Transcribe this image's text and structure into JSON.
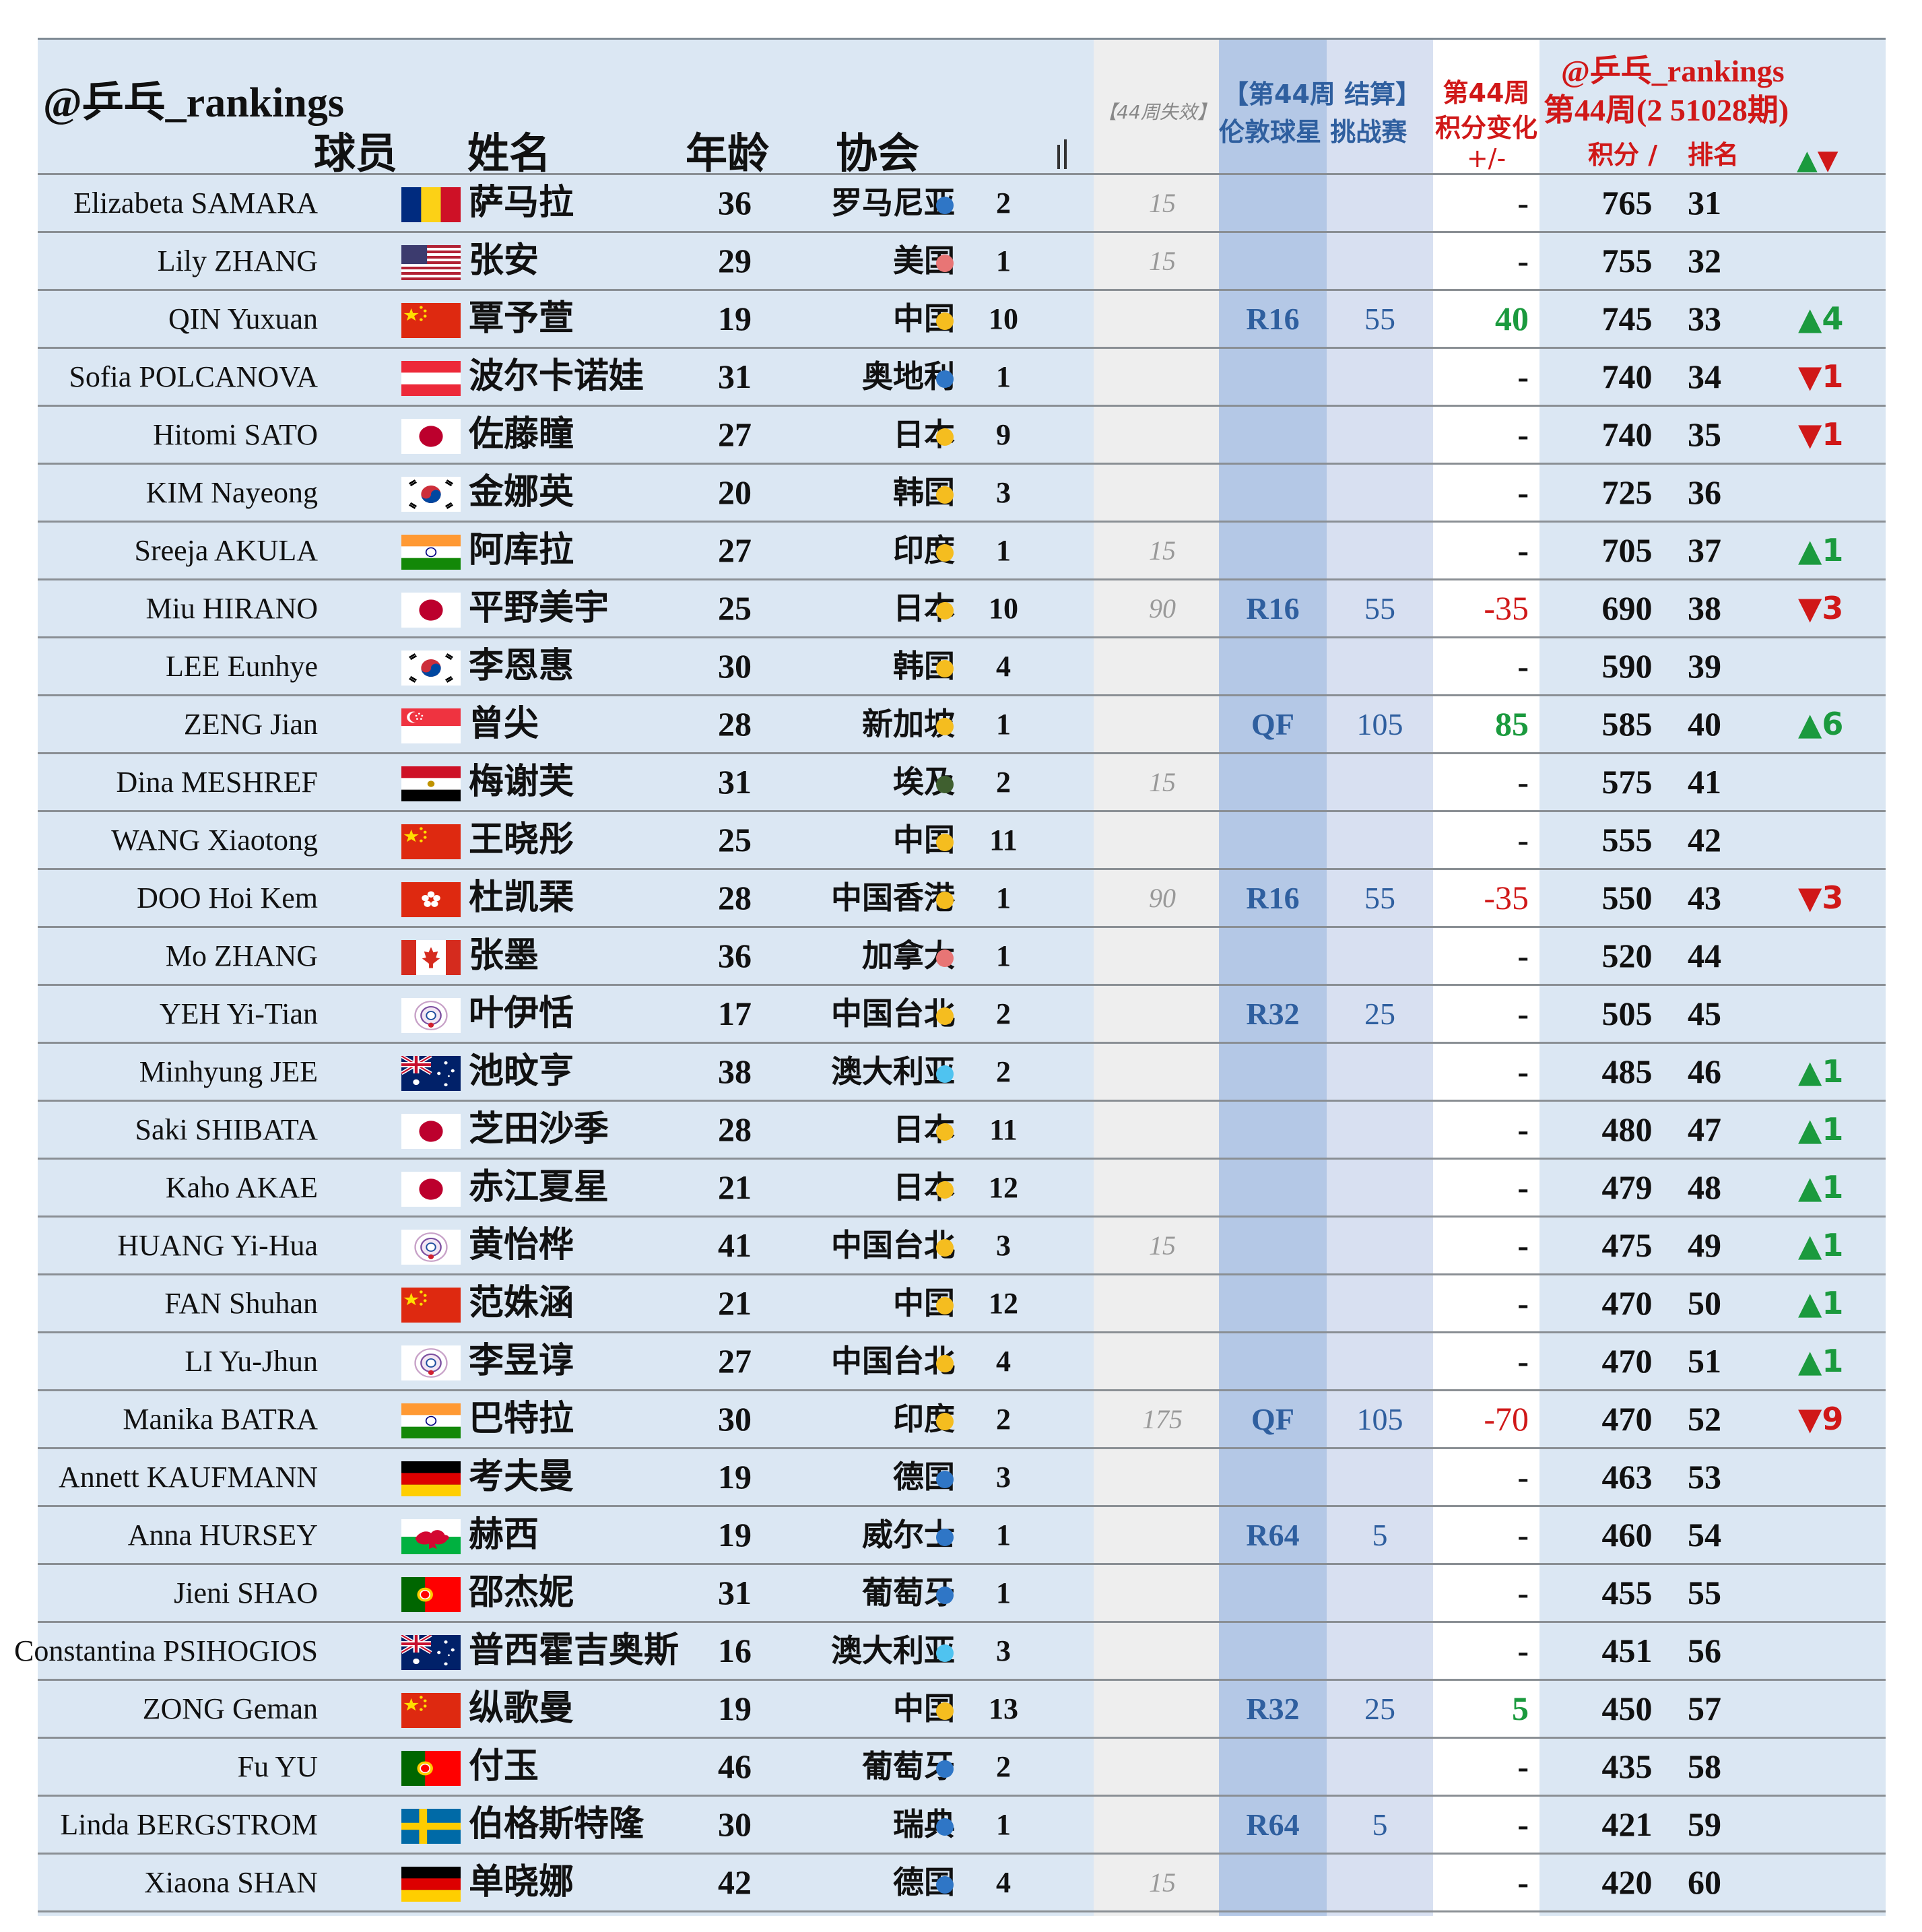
{
  "header": {
    "handle": "@乒乓_rankings",
    "col_player": "球员",
    "col_name": "姓名",
    "col_age": "年龄",
    "col_assoc": "协会",
    "col_lost": "【44周失效】",
    "week_line": "【第44周 结算】",
    "event_line": "伦敦球星 挑战赛",
    "chg_line1": "第44周",
    "chg_line2": "积分变化",
    "chg_line3": "+/-",
    "rank_handle": "@乒乓_rankings",
    "rank_week": "第44周(2 51028期)",
    "col_points": "积分 /",
    "col_rank": "排名",
    "col_move": "▲▼"
  },
  "colors": {
    "europe": "#2f76c6",
    "asia": "#f5bd1f",
    "americas": "#e87575",
    "africa": "#3f5f2f",
    "oceania": "#4fc3f0",
    "up": "#1b9a3e",
    "down": "#d01818",
    "event": "#2f5f9f"
  },
  "rows": [
    {
      "en": "Elizabeta SAMARA",
      "flag": "romania",
      "cn": "萨马拉",
      "age": "36",
      "assoc": "罗马尼亚",
      "region": "europe",
      "acount": "2",
      "lost": "15",
      "res": "",
      "evp": "",
      "chg": "-",
      "chgtype": "dash",
      "points": "765",
      "rank": "31",
      "mv": "",
      "mvtype": ""
    },
    {
      "en": "Lily ZHANG",
      "flag": "usa",
      "cn": "张安",
      "age": "29",
      "assoc": "美国",
      "region": "americas",
      "acount": "1",
      "lost": "15",
      "res": "",
      "evp": "",
      "chg": "-",
      "chgtype": "dash",
      "points": "755",
      "rank": "32",
      "mv": "",
      "mvtype": ""
    },
    {
      "en": "QIN Yuxuan",
      "flag": "china",
      "cn": "覃予萱",
      "age": "19",
      "assoc": "中国",
      "region": "asia",
      "acount": "10",
      "lost": "",
      "res": "R16",
      "evp": "55",
      "chg": "40",
      "chgtype": "pos",
      "points": "745",
      "rank": "33",
      "mv": "▲4",
      "mvtype": "up"
    },
    {
      "en": "Sofia POLCANOVA",
      "flag": "austria",
      "cn": "波尔卡诺娃",
      "age": "31",
      "assoc": "奥地利",
      "region": "europe",
      "acount": "1",
      "lost": "",
      "res": "",
      "evp": "",
      "chg": "-",
      "chgtype": "dash",
      "points": "740",
      "rank": "34",
      "mv": "▼1",
      "mvtype": "down"
    },
    {
      "en": "Hitomi SATO",
      "flag": "japan",
      "cn": "佐藤瞳",
      "age": "27",
      "assoc": "日本",
      "region": "asia",
      "acount": "9",
      "lost": "",
      "res": "",
      "evp": "",
      "chg": "-",
      "chgtype": "dash",
      "points": "740",
      "rank": "35",
      "mv": "▼1",
      "mvtype": "down"
    },
    {
      "en": "KIM Nayeong",
      "flag": "korea",
      "cn": "金娜英",
      "age": "20",
      "assoc": "韩国",
      "region": "asia",
      "acount": "3",
      "lost": "",
      "res": "",
      "evp": "",
      "chg": "-",
      "chgtype": "dash",
      "points": "725",
      "rank": "36",
      "mv": "",
      "mvtype": ""
    },
    {
      "en": "Sreeja AKULA",
      "flag": "india",
      "cn": "阿库拉",
      "age": "27",
      "assoc": "印度",
      "region": "asia",
      "acount": "1",
      "lost": "15",
      "res": "",
      "evp": "",
      "chg": "-",
      "chgtype": "dash",
      "points": "705",
      "rank": "37",
      "mv": "▲1",
      "mvtype": "up"
    },
    {
      "en": "Miu HIRANO",
      "flag": "japan",
      "cn": "平野美宇",
      "age": "25",
      "assoc": "日本",
      "region": "asia",
      "acount": "10",
      "lost": "90",
      "res": "R16",
      "evp": "55",
      "chg": "-35",
      "chgtype": "neg",
      "points": "690",
      "rank": "38",
      "mv": "▼3",
      "mvtype": "down"
    },
    {
      "en": "LEE Eunhye",
      "flag": "korea",
      "cn": "李恩惠",
      "age": "30",
      "assoc": "韩国",
      "region": "asia",
      "acount": "4",
      "lost": "",
      "res": "",
      "evp": "",
      "chg": "-",
      "chgtype": "dash",
      "points": "590",
      "rank": "39",
      "mv": "",
      "mvtype": ""
    },
    {
      "en": "ZENG Jian",
      "flag": "singapore",
      "cn": "曾尖",
      "age": "28",
      "assoc": "新加坡",
      "region": "asia",
      "acount": "1",
      "lost": "",
      "res": "QF",
      "evp": "105",
      "chg": "85",
      "chgtype": "pos",
      "points": "585",
      "rank": "40",
      "mv": "▲6",
      "mvtype": "up"
    },
    {
      "en": "Dina MESHREF",
      "flag": "egypt",
      "cn": "梅谢芙",
      "age": "31",
      "assoc": "埃及",
      "region": "africa",
      "acount": "2",
      "lost": "15",
      "res": "",
      "evp": "",
      "chg": "-",
      "chgtype": "dash",
      "points": "575",
      "rank": "41",
      "mv": "",
      "mvtype": ""
    },
    {
      "en": "WANG Xiaotong",
      "flag": "china",
      "cn": "王晓彤",
      "age": "25",
      "assoc": "中国",
      "region": "asia",
      "acount": "11",
      "lost": "",
      "res": "",
      "evp": "",
      "chg": "-",
      "chgtype": "dash",
      "points": "555",
      "rank": "42",
      "mv": "",
      "mvtype": ""
    },
    {
      "en": "DOO Hoi Kem",
      "flag": "hongkong",
      "cn": "杜凯琹",
      "age": "28",
      "assoc": "中国香港",
      "region": "asia",
      "acount": "1",
      "lost": "90",
      "res": "R16",
      "evp": "55",
      "chg": "-35",
      "chgtype": "neg",
      "points": "550",
      "rank": "43",
      "mv": "▼3",
      "mvtype": "down"
    },
    {
      "en": "Mo ZHANG",
      "flag": "canada",
      "cn": "张墨",
      "age": "36",
      "assoc": "加拿大",
      "region": "americas",
      "acount": "1",
      "lost": "",
      "res": "",
      "evp": "",
      "chg": "-",
      "chgtype": "dash",
      "points": "520",
      "rank": "44",
      "mv": "",
      "mvtype": ""
    },
    {
      "en": "YEH Yi-Tian",
      "flag": "tpe",
      "cn": "叶伊恬",
      "age": "17",
      "assoc": "中国台北",
      "region": "asia",
      "acount": "2",
      "lost": "",
      "res": "R32",
      "evp": "25",
      "chg": "-",
      "chgtype": "dash",
      "points": "505",
      "rank": "45",
      "mv": "",
      "mvtype": ""
    },
    {
      "en": "Minhyung JEE",
      "flag": "australia",
      "cn": "池旼亨",
      "age": "38",
      "assoc": "澳大利亚",
      "region": "oceania",
      "acount": "2",
      "lost": "",
      "res": "",
      "evp": "",
      "chg": "-",
      "chgtype": "dash",
      "points": "485",
      "rank": "46",
      "mv": "▲1",
      "mvtype": "up"
    },
    {
      "en": "Saki SHIBATA",
      "flag": "japan",
      "cn": "芝田沙季",
      "age": "28",
      "assoc": "日本",
      "region": "asia",
      "acount": "11",
      "lost": "",
      "res": "",
      "evp": "",
      "chg": "-",
      "chgtype": "dash",
      "points": "480",
      "rank": "47",
      "mv": "▲1",
      "mvtype": "up"
    },
    {
      "en": "Kaho AKAE",
      "flag": "japan",
      "cn": "赤江夏星",
      "age": "21",
      "assoc": "日本",
      "region": "asia",
      "acount": "12",
      "lost": "",
      "res": "",
      "evp": "",
      "chg": "-",
      "chgtype": "dash",
      "points": "479",
      "rank": "48",
      "mv": "▲1",
      "mvtype": "up"
    },
    {
      "en": "HUANG Yi-Hua",
      "flag": "tpe",
      "cn": "黄怡桦",
      "age": "41",
      "assoc": "中国台北",
      "region": "asia",
      "acount": "3",
      "lost": "15",
      "res": "",
      "evp": "",
      "chg": "-",
      "chgtype": "dash",
      "points": "475",
      "rank": "49",
      "mv": "▲1",
      "mvtype": "up"
    },
    {
      "en": "FAN Shuhan",
      "flag": "china",
      "cn": "范姝涵",
      "age": "21",
      "assoc": "中国",
      "region": "asia",
      "acount": "12",
      "lost": "",
      "res": "",
      "evp": "",
      "chg": "-",
      "chgtype": "dash",
      "points": "470",
      "rank": "50",
      "mv": "▲1",
      "mvtype": "up"
    },
    {
      "en": "LI Yu-Jhun",
      "flag": "tpe",
      "cn": "李昱谆",
      "age": "27",
      "assoc": "中国台北",
      "region": "asia",
      "acount": "4",
      "lost": "",
      "res": "",
      "evp": "",
      "chg": "-",
      "chgtype": "dash",
      "points": "470",
      "rank": "51",
      "mv": "▲1",
      "mvtype": "up"
    },
    {
      "en": "Manika BATRA",
      "flag": "india",
      "cn": "巴特拉",
      "age": "30",
      "assoc": "印度",
      "region": "asia",
      "acount": "2",
      "lost": "175",
      "res": "QF",
      "evp": "105",
      "chg": "-70",
      "chgtype": "neg",
      "points": "470",
      "rank": "52",
      "mv": "▼9",
      "mvtype": "down"
    },
    {
      "en": "Annett KAUFMANN",
      "flag": "germany",
      "cn": "考夫曼",
      "age": "19",
      "assoc": "德国",
      "region": "europe",
      "acount": "3",
      "lost": "",
      "res": "",
      "evp": "",
      "chg": "-",
      "chgtype": "dash",
      "points": "463",
      "rank": "53",
      "mv": "",
      "mvtype": ""
    },
    {
      "en": "Anna HURSEY",
      "flag": "wales",
      "cn": "赫西",
      "age": "19",
      "assoc": "威尔士",
      "region": "europe",
      "acount": "1",
      "lost": "",
      "res": "R64",
      "evp": "5",
      "chg": "-",
      "chgtype": "dash",
      "points": "460",
      "rank": "54",
      "mv": "",
      "mvtype": ""
    },
    {
      "en": "Jieni SHAO",
      "flag": "portugal",
      "cn": "邵杰妮",
      "age": "31",
      "assoc": "葡萄牙",
      "region": "europe",
      "acount": "1",
      "lost": "",
      "res": "",
      "evp": "",
      "chg": "-",
      "chgtype": "dash",
      "points": "455",
      "rank": "55",
      "mv": "",
      "mvtype": ""
    },
    {
      "en": "Constantina PSIHOGIOS",
      "flag": "australia",
      "cn": "普西霍吉奥斯",
      "age": "16",
      "assoc": "澳大利亚",
      "region": "oceania",
      "acount": "3",
      "lost": "",
      "res": "",
      "evp": "",
      "chg": "-",
      "chgtype": "dash",
      "points": "451",
      "rank": "56",
      "mv": "",
      "mvtype": ""
    },
    {
      "en": "ZONG Geman",
      "flag": "china",
      "cn": "纵歌曼",
      "age": "19",
      "assoc": "中国",
      "region": "asia",
      "acount": "13",
      "lost": "",
      "res": "R32",
      "evp": "25",
      "chg": "5",
      "chgtype": "pos",
      "points": "450",
      "rank": "57",
      "mv": "",
      "mvtype": ""
    },
    {
      "en": "Fu YU",
      "flag": "portugal",
      "cn": "付玉",
      "age": "46",
      "assoc": "葡萄牙",
      "region": "europe",
      "acount": "2",
      "lost": "",
      "res": "",
      "evp": "",
      "chg": "-",
      "chgtype": "dash",
      "points": "435",
      "rank": "58",
      "mv": "",
      "mvtype": ""
    },
    {
      "en": "Linda BERGSTROM",
      "flag": "sweden",
      "cn": "伯格斯特隆",
      "age": "30",
      "assoc": "瑞典",
      "region": "europe",
      "acount": "1",
      "lost": "",
      "res": "R64",
      "evp": "5",
      "chg": "-",
      "chgtype": "dash",
      "points": "421",
      "rank": "59",
      "mv": "",
      "mvtype": ""
    },
    {
      "en": "Xiaona SHAN",
      "flag": "germany",
      "cn": "单晓娜",
      "age": "42",
      "assoc": "德国",
      "region": "europe",
      "acount": "4",
      "lost": "15",
      "res": "",
      "evp": "",
      "chg": "-",
      "chgtype": "dash",
      "points": "420",
      "rank": "60",
      "mv": "",
      "mvtype": ""
    }
  ]
}
